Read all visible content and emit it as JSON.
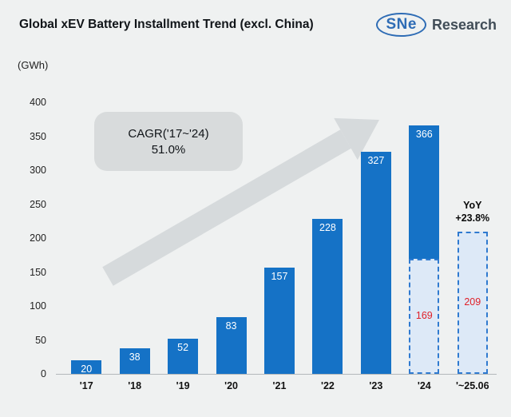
{
  "title": "Global xEV Battery Installment Trend (excl. China)",
  "logo": {
    "sne": "SNe",
    "research": "Research"
  },
  "unit_label": "(GWh)",
  "annotation": {
    "cagr_line1": "CAGR('17~'24)",
    "cagr_line2": "51.0%"
  },
  "yoy": {
    "line1": "YoY",
    "line2": "+23.8%"
  },
  "colors": {
    "background": "#eff1f1",
    "bar": "#1572c6",
    "bar_light": "#dde9f7",
    "dashed_border": "#2f7ad0",
    "value_red": "#e02028",
    "arrow": "#d6dadc",
    "box_bg": "#d8dbdc",
    "logo_blue": "#2e6cb5"
  },
  "chart_data": {
    "type": "bar",
    "title": "Global xEV Battery Installment Trend (excl. China)",
    "ylabel": "(GWh)",
    "categories": [
      "'17",
      "'18",
      "'19",
      "'20",
      "'21",
      "'22",
      "'23",
      "'24",
      "'~25.06"
    ],
    "values": [
      20,
      38,
      52,
      83,
      157,
      228,
      327,
      366,
      209
    ],
    "dashed_indices": [
      8
    ],
    "overlay": {
      "index": 7,
      "category": "'24",
      "value": 169
    },
    "ylim": [
      0,
      400
    ],
    "yticks": [
      0,
      50,
      100,
      150,
      200,
      250,
      300,
      350,
      400
    ],
    "grid": false,
    "legend": false
  }
}
